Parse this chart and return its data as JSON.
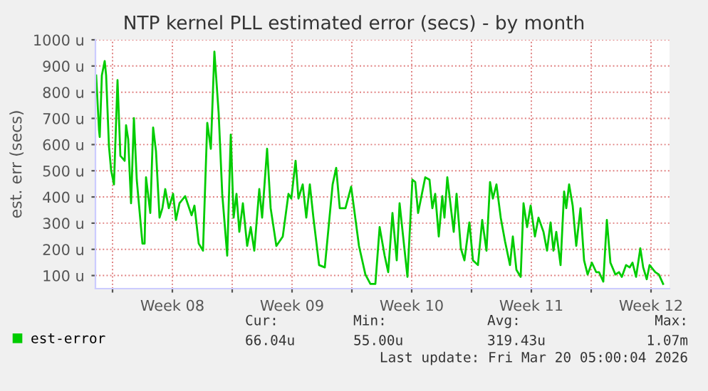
{
  "chart_data": {
    "type": "line",
    "title": "NTP kernel PLL estimated error (secs) - by month",
    "ylabel": "est. err (secs)",
    "xlim": [
      "2026-02-15T00:00",
      "2026-03-20T14:00"
    ],
    "ylim": [
      50,
      1000
    ],
    "xticks": [
      {
        "value": "2026-02-16",
        "label": null
      },
      {
        "value": "2026-02-19T12:00",
        "label": "Week 08"
      },
      {
        "value": "2026-02-23",
        "label": null
      },
      {
        "value": "2026-02-26T12:00",
        "label": "Week 09"
      },
      {
        "value": "2026-03-02",
        "label": null
      },
      {
        "value": "2026-03-05T12:00",
        "label": "Week 10"
      },
      {
        "value": "2026-03-09",
        "label": null
      },
      {
        "value": "2026-03-12T12:00",
        "label": "Week 11"
      },
      {
        "value": "2026-03-16",
        "label": null
      },
      {
        "value": "2026-03-19T12:00",
        "label": "Week 12"
      }
    ],
    "yticks": [
      {
        "value": 100,
        "label": "100 u"
      },
      {
        "value": 200,
        "label": "200 u"
      },
      {
        "value": 300,
        "label": "300 u"
      },
      {
        "value": 400,
        "label": "400 u"
      },
      {
        "value": 500,
        "label": "500 u"
      },
      {
        "value": 600,
        "label": "600 u"
      },
      {
        "value": 700,
        "label": "700 u"
      },
      {
        "value": 800,
        "label": "800 u"
      },
      {
        "value": 900,
        "label": "900 u"
      },
      {
        "value": 1000,
        "label": "1000 u"
      }
    ],
    "grid": true,
    "legend": "bottom",
    "marker": "none",
    "line_style": "solid",
    "series": [
      {
        "name": "est-error",
        "color": "#00cc00",
        "x": [
          "2026-02-15T01:00",
          "2026-02-15T05:00",
          "2026-02-15T06:00",
          "2026-02-15T09:00",
          "2026-02-15T13:00",
          "2026-02-15T15:00",
          "2026-02-15T19:00",
          "2026-02-15T22:00",
          "2026-02-16T02:00",
          "2026-02-16T07:00",
          "2026-02-16T11:00",
          "2026-02-16T17:00",
          "2026-02-16T19:00",
          "2026-02-16T22:00",
          "2026-02-17T02:00",
          "2026-02-17T06:00",
          "2026-02-17T10:00",
          "2026-02-17T18:00",
          "2026-02-17T21:00",
          "2026-02-17T23:00",
          "2026-02-18T05:00",
          "2026-02-18T09:00",
          "2026-02-18T13:00",
          "2026-02-18T18:00",
          "2026-02-18T22:00",
          "2026-02-19T02:00",
          "2026-02-19T07:00",
          "2026-02-19T13:00",
          "2026-02-19T17:00",
          "2026-02-19T22:00",
          "2026-02-20T06:00",
          "2026-02-20T15:00",
          "2026-02-20T19:00",
          "2026-02-21T01:00",
          "2026-02-21T07:00",
          "2026-02-21T13:00",
          "2026-02-21T18:00",
          "2026-02-21T23:00",
          "2026-02-22T05:00",
          "2026-02-22T10:00",
          "2026-02-22T17:00",
          "2026-02-22T22:00",
          "2026-02-23T02:00",
          "2026-02-23T06:00",
          "2026-02-23T10:00",
          "2026-02-23T15:00",
          "2026-02-23T21:00",
          "2026-02-24T02:00",
          "2026-02-24T07:00",
          "2026-02-24T14:00",
          "2026-02-24T18:00",
          "2026-02-25T01:00",
          "2026-02-25T06:00",
          "2026-02-25T14:00",
          "2026-02-25T23:00",
          "2026-02-26T07:00",
          "2026-02-26T11:00",
          "2026-02-26T17:00",
          "2026-02-26T21:00",
          "2026-02-27T03:00",
          "2026-02-27T08:00",
          "2026-02-27T13:00",
          "2026-02-27T18:00",
          "2026-02-28T02:00",
          "2026-02-28T10:00",
          "2026-02-28T21:00",
          "2026-03-01T02:00",
          "2026-03-01T07:00",
          "2026-03-01T15:00",
          "2026-03-01T23:00",
          "2026-03-02T03:00",
          "2026-03-02T10:00",
          "2026-03-02T19:00",
          "2026-03-03T02:00",
          "2026-03-03T09:00",
          "2026-03-03T15:00",
          "2026-03-03T22:00",
          "2026-03-04T03:00",
          "2026-03-04T09:00",
          "2026-03-04T15:00",
          "2026-03-04T19:00",
          "2026-03-05T06:00",
          "2026-03-05T13:00",
          "2026-03-05T17:00",
          "2026-03-05T21:00",
          "2026-03-06T07:00",
          "2026-03-06T13:00",
          "2026-03-06T17:00",
          "2026-03-06T21:00",
          "2026-03-07T02:00",
          "2026-03-07T07:00",
          "2026-03-07T10:00",
          "2026-03-07T14:00",
          "2026-03-07T23:00",
          "2026-03-08T03:00",
          "2026-03-08T09:00",
          "2026-03-08T14:00",
          "2026-03-08T21:00",
          "2026-03-09T02:00",
          "2026-03-09T09:00",
          "2026-03-09T15:00",
          "2026-03-09T21:00",
          "2026-03-10T02:00",
          "2026-03-10T06:00",
          "2026-03-10T11:00",
          "2026-03-10T17:00",
          "2026-03-10T23:00",
          "2026-03-11T06:00",
          "2026-03-11T10:00",
          "2026-03-11T15:00",
          "2026-03-11T21:00",
          "2026-03-12T01:00",
          "2026-03-12T06:00",
          "2026-03-12T11:00",
          "2026-03-12T17:00",
          "2026-03-12T22:00",
          "2026-03-13T05:00",
          "2026-03-13T10:00",
          "2026-03-13T15:00",
          "2026-03-13T19:00",
          "2026-03-13T23:00",
          "2026-03-14T05:00",
          "2026-03-14T10:00",
          "2026-03-14T13:00",
          "2026-03-14T17:00",
          "2026-03-14T22:00",
          "2026-03-15T03:00",
          "2026-03-15T09:00",
          "2026-03-15T14:00",
          "2026-03-15T19:00",
          "2026-03-16T01:00",
          "2026-03-16T07:00",
          "2026-03-16T11:00",
          "2026-03-16T17:00",
          "2026-03-16T22:00",
          "2026-03-17T03:00",
          "2026-03-17T10:00",
          "2026-03-17T15:00",
          "2026-03-17T19:00",
          "2026-03-18T01:00",
          "2026-03-18T06:00",
          "2026-03-18T10:00",
          "2026-03-18T15:00",
          "2026-03-18T21:00",
          "2026-03-19T01:00",
          "2026-03-19T06:00",
          "2026-03-19T10:00",
          "2026-03-19T18:00",
          "2026-03-19T23:00",
          "2026-03-20T05:00"
        ],
        "values": [
          864,
          656,
          629,
          864,
          919,
          864,
          593,
          502,
          448,
          846,
          557,
          538,
          674,
          620,
          376,
          701,
          466,
          222,
          222,
          475,
          339,
          665,
          575,
          321,
          357,
          430,
          357,
          412,
          312,
          376,
          403,
          330,
          367,
          222,
          195,
          683,
          584,
          955,
          719,
          412,
          176,
          638,
          321,
          412,
          267,
          376,
          213,
          285,
          195,
          430,
          321,
          584,
          357,
          213,
          249,
          412,
          394,
          538,
          394,
          448,
          321,
          448,
          321,
          140,
          131,
          448,
          511,
          357,
          357,
          439,
          357,
          213,
          104,
          68,
          68,
          285,
          176,
          113,
          339,
          158,
          376,
          95,
          466,
          457,
          339,
          475,
          466,
          357,
          412,
          249,
          403,
          321,
          475,
          267,
          412,
          204,
          158,
          303,
          158,
          140,
          312,
          195,
          457,
          394,
          448,
          321,
          231,
          140,
          249,
          122,
          95,
          376,
          285,
          367,
          249,
          321,
          267,
          195,
          303,
          195,
          267,
          140,
          421,
          357,
          448,
          367,
          213,
          357,
          158,
          104,
          149,
          113,
          113,
          77,
          312,
          149,
          104,
          113,
          95,
          140,
          131,
          149,
          95,
          204,
          131,
          86,
          140,
          113,
          104,
          68
        ]
      }
    ],
    "annotations": [
      "Cur:",
      "66.04u",
      "Min:",
      "55.00u",
      "Avg:",
      "319.43u",
      "Max:",
      "1.07m",
      "Last update: Fri Mar 20 05:00:04 2026"
    ]
  }
}
